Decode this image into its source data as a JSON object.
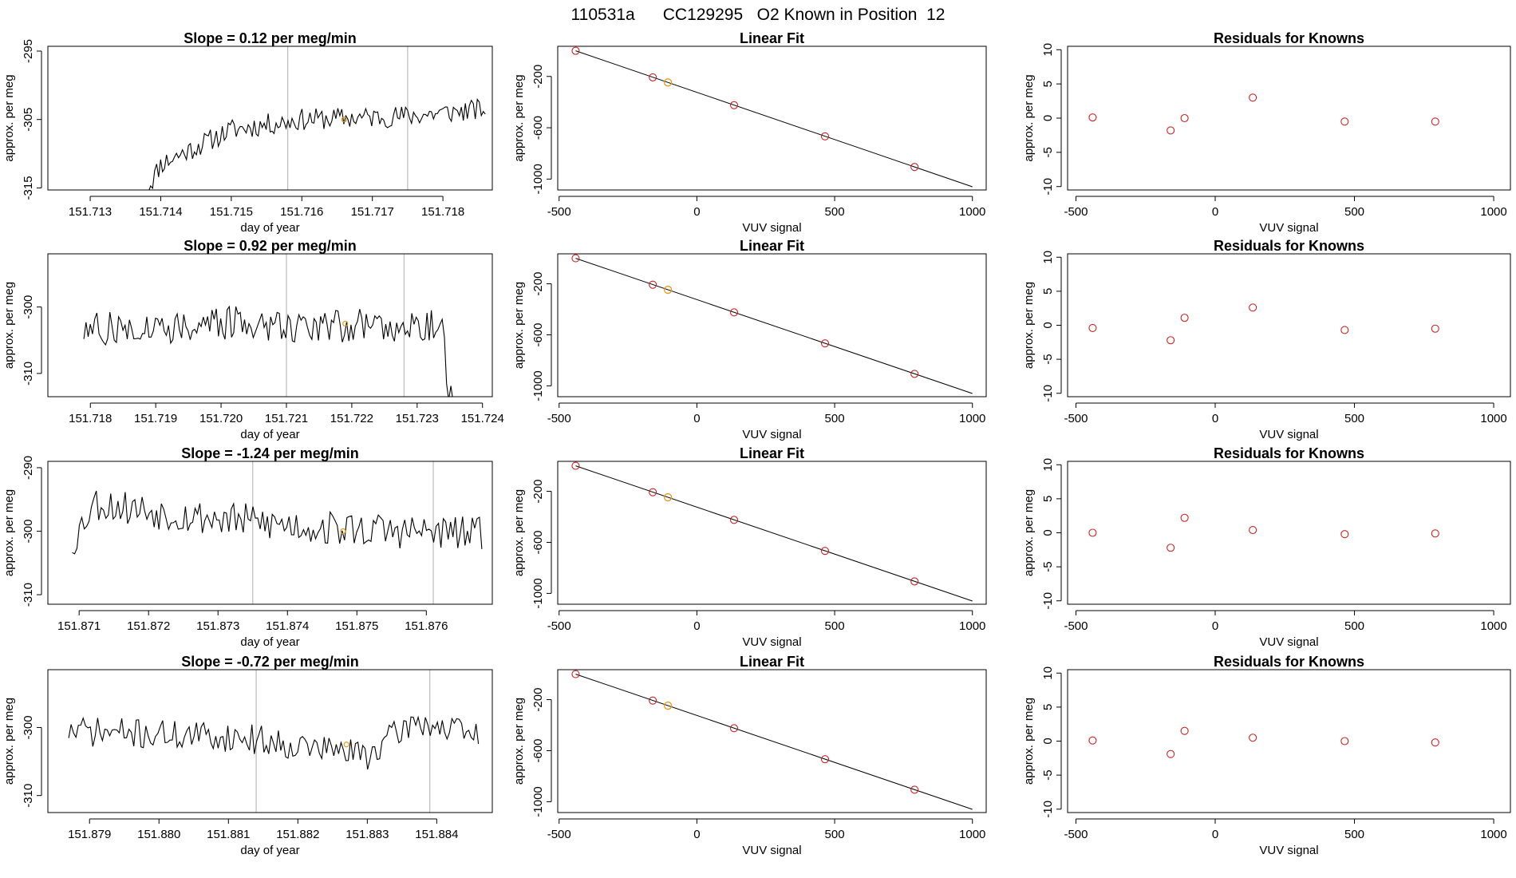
{
  "figure_title": "110531a      CC129295   O2 Known in Position  12",
  "colors": {
    "line": "#000000",
    "point": "#cc2222",
    "highlight": "#e89b1a",
    "gridline": "#bbbbbb",
    "frame": "#000000"
  },
  "chart_data": [
    {
      "type": "line",
      "row": 1,
      "col": 1,
      "title": "Slope =  0.12  per meg/min",
      "xlabel": "day of year",
      "ylabel": "approx. per meg",
      "xlim": [
        151.7124,
        151.7187
      ],
      "ylim": [
        -315.3,
        -294.3
      ],
      "xticks": [
        151.713,
        151.714,
        151.715,
        151.716,
        151.717,
        151.718
      ],
      "xtick_labels": [
        "151.713",
        "151.714",
        "151.715",
        "151.716",
        "151.717",
        "151.718"
      ],
      "yticks": [
        -295,
        -305,
        -315
      ],
      "ytick_labels": [
        "-295",
        "-305",
        "-315"
      ],
      "vlines": [
        151.7158,
        151.7175
      ],
      "highlight_point": [
        151.7166,
        -305.0
      ],
      "seed": 11,
      "x_start": 151.7138,
      "x_end": 151.7186,
      "baseline": -305.5,
      "noise": 1.6,
      "shape": [
        [
          151.7138,
          -315.3
        ],
        [
          151.714,
          -311.5
        ],
        [
          151.7145,
          -309.0
        ],
        [
          151.715,
          -306.5
        ],
        [
          151.716,
          -305.0
        ],
        [
          151.7175,
          -304.5
        ],
        [
          151.7186,
          -303.5
        ]
      ]
    },
    {
      "type": "scatter-line",
      "row": 1,
      "col": 2,
      "title": "Linear Fit",
      "xlabel": "VUV signal",
      "ylabel": "approx. per meg",
      "xlim": [
        -505,
        1050
      ],
      "ylim": [
        -1085,
        35
      ],
      "xticks": [
        -500,
        0,
        500,
        1000
      ],
      "xtick_labels": [
        "-500",
        "0",
        "500",
        "1000"
      ],
      "yticks": [
        -200,
        -600,
        -1000
      ],
      "ytick_labels": [
        "-200",
        "-600",
        "-1000"
      ],
      "fit_line": {
        "x": [
          -440,
          1000
        ],
        "y": [
          0,
          -1060
        ]
      },
      "points": [
        {
          "x": -440,
          "y": 0
        },
        {
          "x": -160,
          "y": -207
        },
        {
          "x": 135,
          "y": -424
        },
        {
          "x": 465,
          "y": -667
        },
        {
          "x": 790,
          "y": -906
        }
      ],
      "highlight_point": {
        "x": -105,
        "y": -247
      }
    },
    {
      "type": "scatter",
      "row": 1,
      "col": 3,
      "title": "Residuals for Knowns",
      "xlabel": "VUV signal",
      "ylabel": "approx. per meg",
      "xlim": [
        -530,
        1060
      ],
      "ylim": [
        -10.5,
        10.5
      ],
      "xticks": [
        -500,
        0,
        500,
        1000
      ],
      "xtick_labels": [
        "-500",
        "0",
        "500",
        "1000"
      ],
      "yticks": [
        10,
        5,
        0,
        -5,
        -10
      ],
      "ytick_labels": [
        "10",
        "5",
        "0",
        "-5",
        "-10"
      ],
      "points": [
        {
          "x": -440,
          "y": 0.1
        },
        {
          "x": -160,
          "y": -1.8
        },
        {
          "x": -110,
          "y": 0.0
        },
        {
          "x": 135,
          "y": 3.0
        },
        {
          "x": 465,
          "y": -0.5
        },
        {
          "x": 790,
          "y": -0.5
        }
      ]
    },
    {
      "type": "line",
      "row": 2,
      "col": 1,
      "title": "Slope =  0.92  per meg/min",
      "xlabel": "day of year",
      "ylabel": "approx. per meg",
      "xlim": [
        151.71735,
        151.72415
      ],
      "ylim": [
        -313.5,
        -292.0
      ],
      "xticks": [
        151.718,
        151.719,
        151.72,
        151.721,
        151.722,
        151.723,
        151.724
      ],
      "xtick_labels": [
        "151.718",
        "151.719",
        "151.720",
        "151.721",
        "151.722",
        "151.723",
        "151.724"
      ],
      "yticks": [
        -300,
        -310
      ],
      "ytick_labels": [
        "-300",
        "-310"
      ],
      "vlines": [
        151.721,
        151.7228
      ],
      "highlight_point": [
        151.7219,
        -302.5
      ],
      "seed": 27,
      "x_start": 151.7179,
      "x_end": 151.72355,
      "baseline": -303.0,
      "noise": 2.6,
      "shape": [
        [
          151.7179,
          -303.5
        ],
        [
          151.72,
          -302.5
        ],
        [
          151.722,
          -302.8
        ],
        [
          151.7234,
          -302.5
        ],
        [
          151.72345,
          -313.5
        ]
      ]
    },
    {
      "type": "scatter-line",
      "row": 2,
      "col": 2,
      "title": "Linear Fit",
      "xlabel": "VUV signal",
      "ylabel": "approx. per meg",
      "xlim": [
        -505,
        1050
      ],
      "ylim": [
        -1085,
        35
      ],
      "xticks": [
        -500,
        0,
        500,
        1000
      ],
      "xtick_labels": [
        "-500",
        "0",
        "500",
        "1000"
      ],
      "yticks": [
        -200,
        -600,
        -1000
      ],
      "ytick_labels": [
        "-200",
        "-600",
        "-1000"
      ],
      "fit_line": {
        "x": [
          -440,
          1000
        ],
        "y": [
          0,
          -1060
        ]
      },
      "points": [
        {
          "x": -440,
          "y": 0
        },
        {
          "x": -160,
          "y": -207
        },
        {
          "x": 135,
          "y": -424
        },
        {
          "x": 465,
          "y": -667
        },
        {
          "x": 790,
          "y": -906
        }
      ],
      "highlight_point": {
        "x": -105,
        "y": -247
      }
    },
    {
      "type": "scatter",
      "row": 2,
      "col": 3,
      "title": "Residuals for Knowns",
      "xlabel": "VUV signal",
      "ylabel": "approx. per meg",
      "xlim": [
        -530,
        1060
      ],
      "ylim": [
        -10.5,
        10.5
      ],
      "xticks": [
        -500,
        0,
        500,
        1000
      ],
      "xtick_labels": [
        "-500",
        "0",
        "500",
        "1000"
      ],
      "yticks": [
        10,
        5,
        0,
        -5,
        -10
      ],
      "ytick_labels": [
        "10",
        "5",
        "0",
        "-5",
        "-10"
      ],
      "points": [
        {
          "x": -440,
          "y": -0.4
        },
        {
          "x": -160,
          "y": -2.2
        },
        {
          "x": -110,
          "y": 1.1
        },
        {
          "x": 135,
          "y": 2.6
        },
        {
          "x": 465,
          "y": -0.7
        },
        {
          "x": 790,
          "y": -0.5
        }
      ]
    },
    {
      "type": "line",
      "row": 3,
      "col": 1,
      "title": "Slope =  -1.24  per meg/min",
      "xlabel": "day of year",
      "ylabel": "approx. per meg",
      "xlim": [
        151.87055,
        151.87695
      ],
      "ylim": [
        -311.5,
        -289.0
      ],
      "xticks": [
        151.871,
        151.872,
        151.873,
        151.874,
        151.875,
        151.876
      ],
      "xtick_labels": [
        "151.871",
        "151.872",
        "151.873",
        "151.874",
        "151.875",
        "151.876"
      ],
      "yticks": [
        -290,
        -300,
        -310
      ],
      "ytick_labels": [
        "-290",
        "-300",
        "-310"
      ],
      "vlines": [
        151.8735,
        151.8761
      ],
      "highlight_point": [
        151.8748,
        -300.0
      ],
      "seed": 53,
      "x_start": 151.8709,
      "x_end": 151.8768,
      "baseline": -299.0,
      "noise": 2.8,
      "shape": [
        [
          151.8709,
          -302.0
        ],
        [
          151.8712,
          -295.5
        ],
        [
          151.8725,
          -297.5
        ],
        [
          151.8745,
          -299.5
        ],
        [
          151.8768,
          -300.5
        ]
      ]
    },
    {
      "type": "scatter-line",
      "row": 3,
      "col": 2,
      "title": "Linear Fit",
      "xlabel": "VUV signal",
      "ylabel": "approx. per meg",
      "xlim": [
        -505,
        1050
      ],
      "ylim": [
        -1085,
        35
      ],
      "xticks": [
        -500,
        0,
        500,
        1000
      ],
      "xtick_labels": [
        "-500",
        "0",
        "500",
        "1000"
      ],
      "yticks": [
        -200,
        -600,
        -1000
      ],
      "ytick_labels": [
        "-200",
        "-600",
        "-1000"
      ],
      "fit_line": {
        "x": [
          -440,
          1000
        ],
        "y": [
          0,
          -1060
        ]
      },
      "points": [
        {
          "x": -440,
          "y": 0
        },
        {
          "x": -160,
          "y": -207
        },
        {
          "x": 135,
          "y": -424
        },
        {
          "x": 465,
          "y": -667
        },
        {
          "x": 790,
          "y": -906
        }
      ],
      "highlight_point": {
        "x": -105,
        "y": -247
      }
    },
    {
      "type": "scatter",
      "row": 3,
      "col": 3,
      "title": "Residuals for Knowns",
      "xlabel": "VUV signal",
      "ylabel": "approx. per meg",
      "xlim": [
        -530,
        1060
      ],
      "ylim": [
        -10.5,
        10.5
      ],
      "xticks": [
        -500,
        0,
        500,
        1000
      ],
      "xtick_labels": [
        "-500",
        "0",
        "500",
        "1000"
      ],
      "yticks": [
        10,
        5,
        0,
        -5,
        -10
      ],
      "ytick_labels": [
        "10",
        "5",
        "0",
        "-5",
        "-10"
      ],
      "points": [
        {
          "x": -440,
          "y": 0.0
        },
        {
          "x": -160,
          "y": -2.2
        },
        {
          "x": -110,
          "y": 2.2
        },
        {
          "x": 135,
          "y": 0.4
        },
        {
          "x": 465,
          "y": -0.2
        },
        {
          "x": 790,
          "y": -0.1
        }
      ]
    },
    {
      "type": "line",
      "row": 4,
      "col": 1,
      "title": "Slope =  -0.72  per meg/min",
      "xlabel": "day of year",
      "ylabel": "approx. per meg",
      "xlim": [
        151.8784,
        151.8848
      ],
      "ylim": [
        -312.5,
        -291.5
      ],
      "xticks": [
        151.879,
        151.88,
        151.881,
        151.882,
        151.883,
        151.884
      ],
      "xtick_labels": [
        "151.879",
        "151.880",
        "151.881",
        "151.882",
        "151.883",
        "151.884"
      ],
      "yticks": [
        -300,
        -310
      ],
      "ytick_labels": [
        "-300",
        "-310"
      ],
      "vlines": [
        151.8814,
        151.8839
      ],
      "highlight_point": [
        151.8827,
        -302.5
      ],
      "seed": 71,
      "x_start": 151.8787,
      "x_end": 151.8846,
      "baseline": -301.0,
      "noise": 2.2,
      "shape": [
        [
          151.8787,
          -300.5
        ],
        [
          151.8812,
          -301.5
        ],
        [
          151.883,
          -304.0
        ],
        [
          151.8837,
          -299.0
        ],
        [
          151.8846,
          -301.5
        ]
      ]
    },
    {
      "type": "scatter-line",
      "row": 4,
      "col": 2,
      "title": "Linear Fit",
      "xlabel": "VUV signal",
      "ylabel": "approx. per meg",
      "xlim": [
        -505,
        1050
      ],
      "ylim": [
        -1085,
        35
      ],
      "xticks": [
        -500,
        0,
        500,
        1000
      ],
      "xtick_labels": [
        "-500",
        "0",
        "500",
        "1000"
      ],
      "yticks": [
        -200,
        -600,
        -1000
      ],
      "ytick_labels": [
        "-200",
        "-600",
        "-1000"
      ],
      "fit_line": {
        "x": [
          -440,
          1000
        ],
        "y": [
          0,
          -1060
        ]
      },
      "points": [
        {
          "x": -440,
          "y": 0
        },
        {
          "x": -160,
          "y": -207
        },
        {
          "x": 135,
          "y": -424
        },
        {
          "x": 465,
          "y": -667
        },
        {
          "x": 790,
          "y": -906
        }
      ],
      "highlight_point": {
        "x": -105,
        "y": -247
      }
    },
    {
      "type": "scatter",
      "row": 4,
      "col": 3,
      "title": "Residuals for Knowns",
      "xlabel": "VUV signal",
      "ylabel": "approx. per meg",
      "xlim": [
        -530,
        1060
      ],
      "ylim": [
        -10.5,
        10.5
      ],
      "xticks": [
        -500,
        0,
        500,
        1000
      ],
      "xtick_labels": [
        "-500",
        "0",
        "500",
        "1000"
      ],
      "yticks": [
        10,
        5,
        0,
        -5,
        -10
      ],
      "ytick_labels": [
        "10",
        "5",
        "0",
        "-5",
        "-10"
      ],
      "points": [
        {
          "x": -440,
          "y": 0.1
        },
        {
          "x": -160,
          "y": -1.9
        },
        {
          "x": -110,
          "y": 1.5
        },
        {
          "x": 135,
          "y": 0.5
        },
        {
          "x": 465,
          "y": 0.0
        },
        {
          "x": 790,
          "y": -0.2
        }
      ]
    }
  ]
}
